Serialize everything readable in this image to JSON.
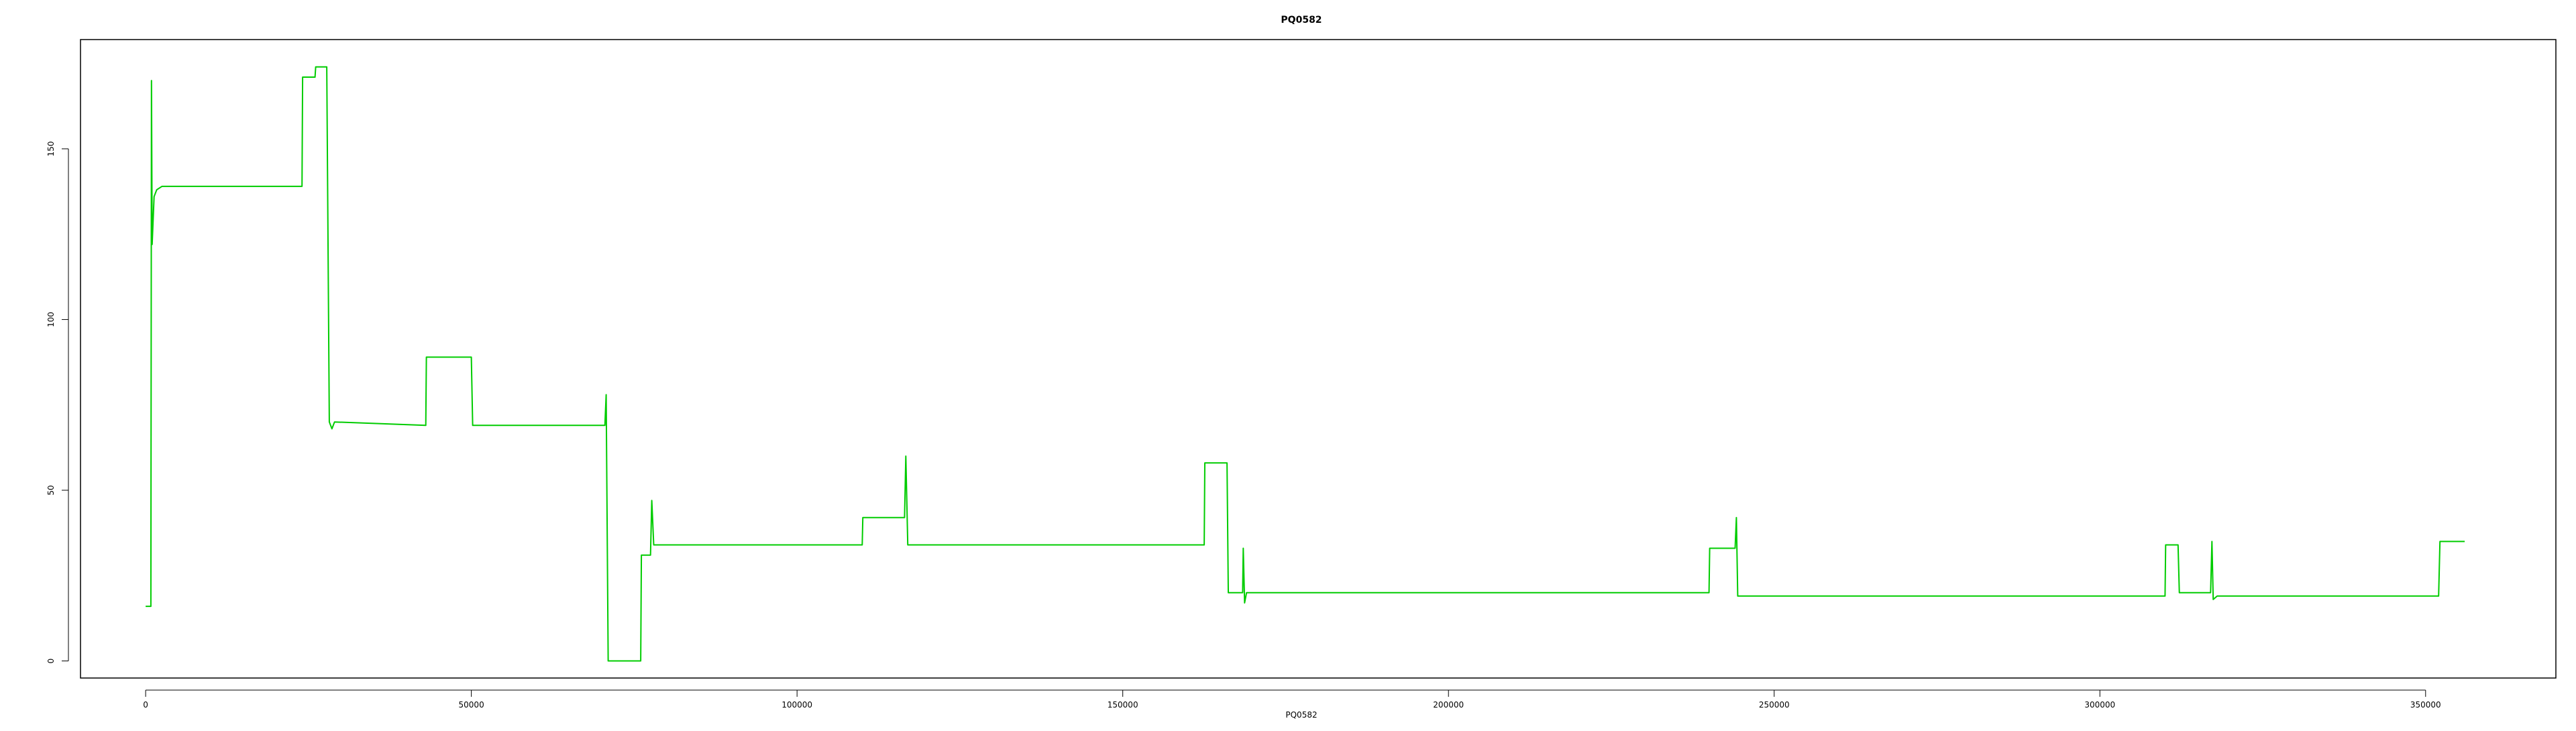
{
  "chart_data": {
    "type": "line",
    "title": "PQ0582",
    "xlabel": "PQ0582",
    "ylabel": "",
    "xlim": [
      -10000,
      370000
    ],
    "ylim": [
      -5,
      182
    ],
    "x_ticks": [
      0,
      50000,
      100000,
      150000,
      200000,
      250000,
      300000,
      350000
    ],
    "x_tick_labels": [
      "0",
      "50000",
      "100000",
      "150000",
      "200000",
      "250000",
      "300000",
      "350000"
    ],
    "y_ticks": [
      0,
      50,
      100,
      150
    ],
    "y_tick_labels": [
      "0",
      "50",
      "100",
      "150"
    ],
    "grid": false,
    "legend": "none",
    "series": [
      {
        "color": "#00cc00",
        "points": [
          [
            0,
            16
          ],
          [
            800,
            16
          ],
          [
            900,
            170
          ],
          [
            1000,
            122
          ],
          [
            1300,
            136
          ],
          [
            1700,
            138
          ],
          [
            2500,
            139
          ],
          [
            24000,
            139
          ],
          [
            24100,
            171
          ],
          [
            26000,
            171
          ],
          [
            26100,
            174
          ],
          [
            27800,
            174
          ],
          [
            28200,
            70
          ],
          [
            28600,
            68
          ],
          [
            29000,
            70
          ],
          [
            43000,
            69
          ],
          [
            43100,
            89
          ],
          [
            50000,
            89
          ],
          [
            50200,
            69
          ],
          [
            70500,
            69
          ],
          [
            70700,
            78
          ],
          [
            71000,
            0
          ],
          [
            76000,
            0
          ],
          [
            76100,
            31
          ],
          [
            77500,
            31
          ],
          [
            77700,
            47
          ],
          [
            78000,
            34
          ],
          [
            110000,
            34
          ],
          [
            110100,
            42
          ],
          [
            116500,
            42
          ],
          [
            116700,
            60
          ],
          [
            117000,
            34
          ],
          [
            162500,
            34
          ],
          [
            162600,
            58
          ],
          [
            166000,
            58
          ],
          [
            166200,
            20
          ],
          [
            168400,
            20
          ],
          [
            168500,
            33
          ],
          [
            168700,
            17
          ],
          [
            169000,
            20
          ],
          [
            240000,
            20
          ],
          [
            240100,
            33
          ],
          [
            244000,
            33
          ],
          [
            244200,
            42
          ],
          [
            244400,
            19
          ],
          [
            310000,
            19
          ],
          [
            310100,
            34
          ],
          [
            312000,
            34
          ],
          [
            312200,
            20
          ],
          [
            317000,
            20
          ],
          [
            317200,
            35
          ],
          [
            317400,
            18
          ],
          [
            318000,
            19
          ],
          [
            352000,
            19
          ],
          [
            352200,
            35
          ],
          [
            356000,
            35
          ]
        ]
      }
    ]
  }
}
